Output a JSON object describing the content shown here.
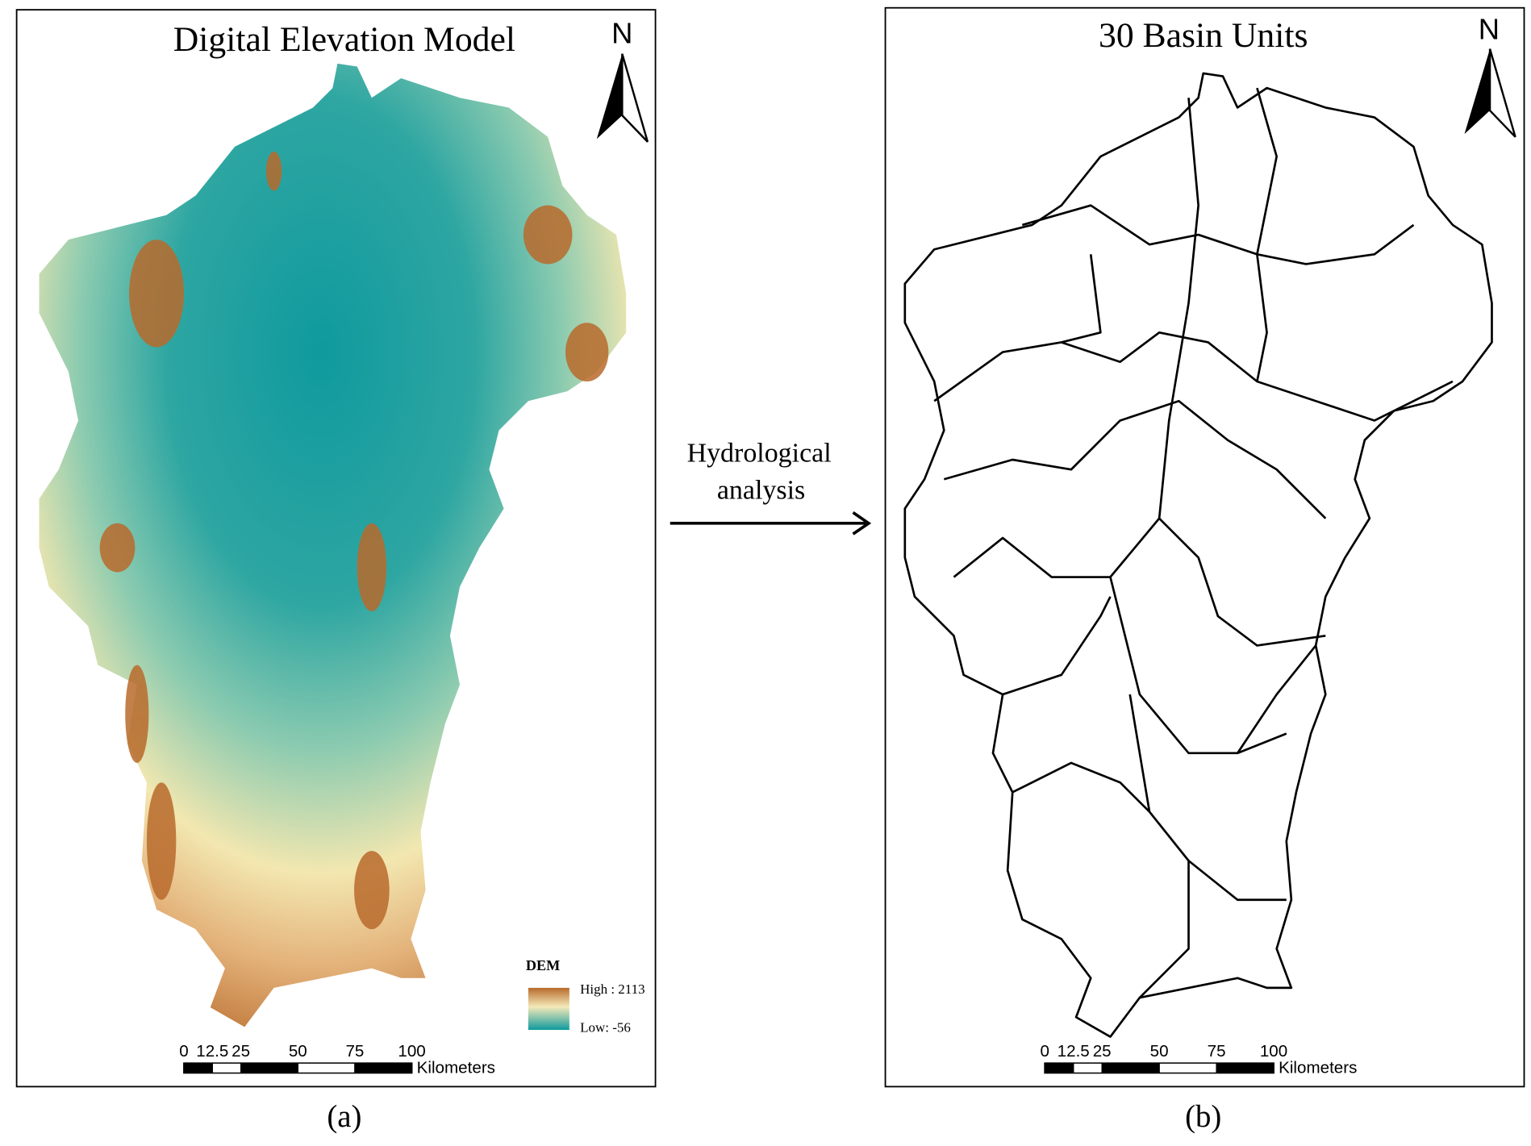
{
  "panels": [
    {
      "title": "Digital Elevation Model",
      "north": "N",
      "legend": {
        "title": "DEM",
        "high": "High : 2113",
        "low": "Low: -56"
      },
      "scale_bar": {
        "ticks": [
          0,
          12.5,
          25,
          50,
          75,
          100
        ],
        "unit": "Kilometers"
      },
      "caption": "(a)"
    },
    {
      "title": "30 Basin Units",
      "north": "N",
      "scale_bar": {
        "ticks": [
          0,
          12.5,
          25,
          50,
          75,
          100
        ],
        "unit": "Kilometers"
      },
      "caption": "(b)"
    }
  ],
  "arrow_label": [
    "Hydrological",
    "analysis"
  ]
}
